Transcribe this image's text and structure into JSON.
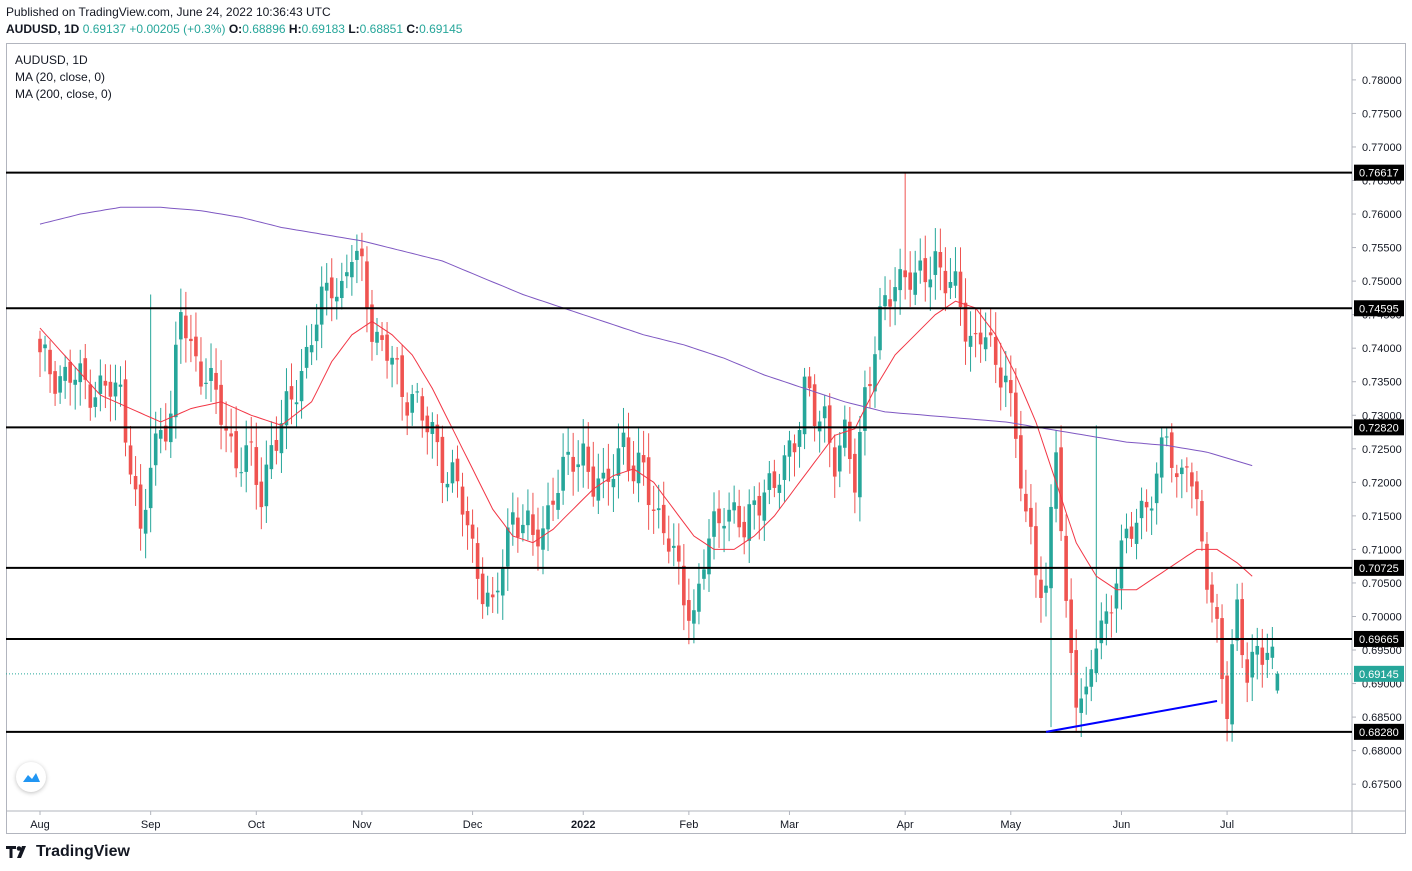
{
  "header": {
    "published": "Published on TradingView.com, June 24, 2022 10:36:43 UTC",
    "symbol": "AUDUSD, 1D",
    "price": "0.69137",
    "change": "+0.00205 (+0.3%)",
    "open_label": "O:",
    "open": "0.68896",
    "high_label": "H:",
    "high": "0.69183",
    "low_label": "L:",
    "low": "0.68851",
    "close_label": "C:",
    "close": "0.69145"
  },
  "legend": {
    "title": "AUDUSD, 1D",
    "ma20": "MA (20, close, 0)",
    "ma200": "MA (200, close, 0)"
  },
  "brand": {
    "name": "TradingView"
  },
  "colors": {
    "up": "#26a69a",
    "down": "#ef5350",
    "ma20": "#f23645",
    "ma200": "#7e57c2",
    "trendline": "#0000ff",
    "level": "#000000",
    "last_price": "#26a69a"
  },
  "chart_data": {
    "type": "candlestick",
    "title": "AUDUSD, 1D",
    "ylim": [
      0.671,
      0.7855
    ],
    "y_ticks": [
      "0.78000",
      "0.77500",
      "0.77000",
      "0.76500",
      "0.76000",
      "0.75500",
      "0.75000",
      "0.74500",
      "0.74000",
      "0.73500",
      "0.73000",
      "0.72500",
      "0.72000",
      "0.71500",
      "0.71000",
      "0.70500",
      "0.70000",
      "0.69500",
      "0.69000",
      "0.68500",
      "0.68000",
      "0.67500"
    ],
    "x_labels": [
      {
        "label": "Aug",
        "day": 0
      },
      {
        "label": "Sep",
        "day": 22
      },
      {
        "label": "Oct",
        "day": 43
      },
      {
        "label": "Nov",
        "day": 64
      },
      {
        "label": "Dec",
        "day": 86
      },
      {
        "label": "2022",
        "day": 108
      },
      {
        "label": "Feb",
        "day": 129
      },
      {
        "label": "Mar",
        "day": 149
      },
      {
        "label": "Apr",
        "day": 172
      },
      {
        "label": "May",
        "day": 193
      },
      {
        "label": "Jun",
        "day": 215
      },
      {
        "label": "Jul",
        "day": 236
      }
    ],
    "levels": [
      {
        "label": "0.76617",
        "value": 0.76617
      },
      {
        "label": "0.74595",
        "value": 0.74595
      },
      {
        "label": "0.72820",
        "value": 0.7282
      },
      {
        "label": "0.70725",
        "value": 0.70725
      },
      {
        "label": "0.69665",
        "value": 0.69665
      },
      {
        "label": "0.68280",
        "value": 0.6828
      }
    ],
    "last_price": {
      "label": "0.69145",
      "value": 0.69145
    },
    "trendline": {
      "from": {
        "day": 200,
        "value": 0.6828
      },
      "to": {
        "day": 234,
        "value": 0.6874
      }
    },
    "close_anchors": [
      [
        0,
        0.738
      ],
      [
        4,
        0.736
      ],
      [
        8,
        0.735
      ],
      [
        12,
        0.734
      ],
      [
        16,
        0.733
      ],
      [
        18,
        0.724
      ],
      [
        20,
        0.711
      ],
      [
        22,
        0.722
      ],
      [
        24,
        0.729
      ],
      [
        26,
        0.73
      ],
      [
        28,
        0.745
      ],
      [
        30,
        0.74
      ],
      [
        33,
        0.736
      ],
      [
        36,
        0.73
      ],
      [
        39,
        0.724
      ],
      [
        42,
        0.723
      ],
      [
        44,
        0.718
      ],
      [
        46,
        0.726
      ],
      [
        48,
        0.728
      ],
      [
        50,
        0.732
      ],
      [
        52,
        0.737
      ],
      [
        54,
        0.742
      ],
      [
        56,
        0.746
      ],
      [
        58,
        0.75
      ],
      [
        60,
        0.749
      ],
      [
        62,
        0.754
      ],
      [
        64,
        0.751
      ],
      [
        66,
        0.744
      ],
      [
        68,
        0.74
      ],
      [
        70,
        0.738
      ],
      [
        72,
        0.733
      ],
      [
        74,
        0.734
      ],
      [
        76,
        0.729
      ],
      [
        78,
        0.727
      ],
      [
        80,
        0.723
      ],
      [
        82,
        0.721
      ],
      [
        84,
        0.716
      ],
      [
        86,
        0.71
      ],
      [
        88,
        0.705
      ],
      [
        90,
        0.7
      ],
      [
        92,
        0.708
      ],
      [
        94,
        0.716
      ],
      [
        96,
        0.714
      ],
      [
        98,
        0.711
      ],
      [
        100,
        0.713
      ],
      [
        102,
        0.719
      ],
      [
        104,
        0.721
      ],
      [
        106,
        0.723
      ],
      [
        108,
        0.725
      ],
      [
        110,
        0.72
      ],
      [
        112,
        0.718
      ],
      [
        114,
        0.723
      ],
      [
        116,
        0.727
      ],
      [
        118,
        0.72
      ],
      [
        120,
        0.722
      ],
      [
        122,
        0.717
      ],
      [
        124,
        0.713
      ],
      [
        126,
        0.708
      ],
      [
        128,
        0.704
      ],
      [
        130,
        0.7
      ],
      [
        132,
        0.708
      ],
      [
        134,
        0.713
      ],
      [
        136,
        0.717
      ],
      [
        138,
        0.715
      ],
      [
        140,
        0.712
      ],
      [
        142,
        0.717
      ],
      [
        144,
        0.72
      ],
      [
        146,
        0.718
      ],
      [
        148,
        0.723
      ],
      [
        150,
        0.727
      ],
      [
        152,
        0.734
      ],
      [
        154,
        0.729
      ],
      [
        156,
        0.73
      ],
      [
        158,
        0.724
      ],
      [
        160,
        0.726
      ],
      [
        162,
        0.72
      ],
      [
        164,
        0.734
      ],
      [
        166,
        0.74
      ],
      [
        168,
        0.746
      ],
      [
        170,
        0.75
      ],
      [
        172,
        0.752
      ],
      [
        174,
        0.749
      ],
      [
        176,
        0.751
      ],
      [
        178,
        0.754
      ],
      [
        180,
        0.75
      ],
      [
        182,
        0.748
      ],
      [
        184,
        0.744
      ],
      [
        186,
        0.741
      ],
      [
        188,
        0.742
      ],
      [
        190,
        0.736
      ],
      [
        192,
        0.738
      ],
      [
        194,
        0.726
      ],
      [
        196,
        0.714
      ],
      [
        198,
        0.708
      ],
      [
        200,
        0.704
      ],
      [
        202,
        0.725
      ],
      [
        204,
        0.7
      ],
      [
        206,
        0.69
      ],
      [
        208,
        0.687
      ],
      [
        210,
        0.696
      ],
      [
        212,
        0.7
      ],
      [
        214,
        0.707
      ],
      [
        216,
        0.711
      ],
      [
        218,
        0.714
      ],
      [
        220,
        0.718
      ],
      [
        222,
        0.72
      ],
      [
        224,
        0.727
      ],
      [
        226,
        0.72
      ],
      [
        228,
        0.725
      ],
      [
        230,
        0.714
      ],
      [
        232,
        0.706
      ],
      [
        234,
        0.699
      ],
      [
        236,
        0.686
      ],
      [
        238,
        0.7
      ],
      [
        240,
        0.692
      ],
      [
        242,
        0.696
      ],
      [
        244,
        0.693
      ],
      [
        246,
        0.6914
      ]
    ],
    "ma20_anchors": [
      [
        0,
        0.743
      ],
      [
        6,
        0.738
      ],
      [
        12,
        0.733
      ],
      [
        18,
        0.731
      ],
      [
        24,
        0.729
      ],
      [
        30,
        0.731
      ],
      [
        36,
        0.732
      ],
      [
        42,
        0.73
      ],
      [
        48,
        0.7285
      ],
      [
        54,
        0.732
      ],
      [
        58,
        0.738
      ],
      [
        62,
        0.742
      ],
      [
        66,
        0.744
      ],
      [
        70,
        0.742
      ],
      [
        74,
        0.739
      ],
      [
        78,
        0.734
      ],
      [
        82,
        0.728
      ],
      [
        86,
        0.722
      ],
      [
        90,
        0.716
      ],
      [
        94,
        0.712
      ],
      [
        98,
        0.711
      ],
      [
        102,
        0.713
      ],
      [
        106,
        0.716
      ],
      [
        110,
        0.719
      ],
      [
        114,
        0.721
      ],
      [
        118,
        0.722
      ],
      [
        122,
        0.72
      ],
      [
        126,
        0.716
      ],
      [
        130,
        0.712
      ],
      [
        134,
        0.71
      ],
      [
        138,
        0.71
      ],
      [
        142,
        0.712
      ],
      [
        146,
        0.715
      ],
      [
        150,
        0.719
      ],
      [
        154,
        0.723
      ],
      [
        158,
        0.727
      ],
      [
        162,
        0.728
      ],
      [
        166,
        0.734
      ],
      [
        170,
        0.739
      ],
      [
        174,
        0.742
      ],
      [
        178,
        0.745
      ],
      [
        182,
        0.747
      ],
      [
        186,
        0.746
      ],
      [
        190,
        0.742
      ],
      [
        194,
        0.736
      ],
      [
        198,
        0.729
      ],
      [
        202,
        0.72
      ],
      [
        206,
        0.711
      ],
      [
        210,
        0.706
      ],
      [
        214,
        0.704
      ],
      [
        218,
        0.704
      ],
      [
        222,
        0.706
      ],
      [
        226,
        0.708
      ],
      [
        230,
        0.71
      ],
      [
        234,
        0.71
      ],
      [
        238,
        0.708
      ],
      [
        241,
        0.706
      ]
    ],
    "ma200_anchors": [
      [
        0,
        0.7585
      ],
      [
        8,
        0.76
      ],
      [
        16,
        0.761
      ],
      [
        24,
        0.761
      ],
      [
        32,
        0.7605
      ],
      [
        40,
        0.7595
      ],
      [
        48,
        0.758
      ],
      [
        56,
        0.757
      ],
      [
        64,
        0.756
      ],
      [
        72,
        0.7545
      ],
      [
        80,
        0.753
      ],
      [
        88,
        0.7505
      ],
      [
        96,
        0.748
      ],
      [
        104,
        0.746
      ],
      [
        112,
        0.744
      ],
      [
        120,
        0.742
      ],
      [
        128,
        0.7405
      ],
      [
        136,
        0.7385
      ],
      [
        144,
        0.736
      ],
      [
        152,
        0.734
      ],
      [
        160,
        0.732
      ],
      [
        168,
        0.7305
      ],
      [
        176,
        0.73
      ],
      [
        184,
        0.7295
      ],
      [
        192,
        0.729
      ],
      [
        200,
        0.728
      ],
      [
        208,
        0.727
      ],
      [
        216,
        0.726
      ],
      [
        224,
        0.7255
      ],
      [
        232,
        0.7245
      ],
      [
        241,
        0.7225
      ]
    ],
    "high_marks": [
      [
        172,
        0.7661
      ],
      [
        210,
        0.7285
      ],
      [
        22,
        0.748
      ]
    ],
    "low_marks": [
      [
        201,
        0.6835
      ],
      [
        236,
        0.685
      ],
      [
        130,
        0.696
      ]
    ]
  }
}
